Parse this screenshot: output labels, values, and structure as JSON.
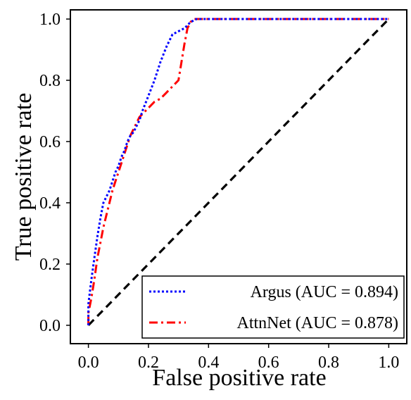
{
  "chart_data": {
    "type": "line",
    "xlabel": "False positive rate",
    "ylabel": "True positive rate",
    "xlim": [
      -0.06,
      1.06
    ],
    "ylim": [
      -0.06,
      1.03
    ],
    "xticks": [
      "0.0",
      "0.2",
      "0.4",
      "0.6",
      "0.8",
      "1.0"
    ],
    "yticks": [
      "0.0",
      "0.2",
      "0.4",
      "0.6",
      "0.8",
      "1.0"
    ],
    "legend_position": "lower-right",
    "grid": false,
    "series": [
      {
        "name": "Argus (AUC = 0.894)",
        "color": "#0000ff",
        "style": "dotted",
        "x": [
          0,
          0,
          0.01,
          0.02,
          0.03,
          0.04,
          0.05,
          0.06,
          0.07,
          0.08,
          0.09,
          0.1,
          0.11,
          0.12,
          0.13,
          0.14,
          0.15,
          0.16,
          0.17,
          0.18,
          0.2,
          0.22,
          0.24,
          0.26,
          0.28,
          0.3,
          0.32,
          0.34,
          0.36,
          0.38,
          0.4,
          0.6,
          0.8,
          1.0
        ],
        "y": [
          0,
          0.07,
          0.15,
          0.22,
          0.29,
          0.35,
          0.4,
          0.42,
          0.44,
          0.47,
          0.5,
          0.52,
          0.55,
          0.57,
          0.6,
          0.62,
          0.63,
          0.65,
          0.67,
          0.7,
          0.75,
          0.8,
          0.86,
          0.91,
          0.95,
          0.96,
          0.97,
          0.99,
          1.0,
          1.0,
          1.0,
          1.0,
          1.0,
          1.0
        ]
      },
      {
        "name": "AttnNet (AUC = 0.878)",
        "color": "#ff0000",
        "style": "dashdot",
        "x": [
          0,
          0,
          0.01,
          0.02,
          0.03,
          0.04,
          0.05,
          0.06,
          0.07,
          0.08,
          0.09,
          0.1,
          0.11,
          0.12,
          0.13,
          0.14,
          0.15,
          0.16,
          0.17,
          0.18,
          0.2,
          0.22,
          0.24,
          0.26,
          0.28,
          0.3,
          0.31,
          0.32,
          0.33,
          0.34,
          0.35,
          0.36,
          0.4,
          0.6,
          0.8,
          1.0
        ],
        "y": [
          0,
          0.04,
          0.09,
          0.15,
          0.22,
          0.27,
          0.32,
          0.36,
          0.4,
          0.44,
          0.47,
          0.5,
          0.53,
          0.56,
          0.59,
          0.62,
          0.64,
          0.66,
          0.68,
          0.69,
          0.71,
          0.73,
          0.74,
          0.76,
          0.78,
          0.8,
          0.86,
          0.92,
          0.97,
          0.99,
          1.0,
          1.0,
          1.0,
          1.0,
          1.0,
          1.0
        ]
      },
      {
        "name": "",
        "color": "#000000",
        "style": "dashed",
        "x": [
          0,
          1
        ],
        "y": [
          0,
          1
        ]
      }
    ]
  }
}
